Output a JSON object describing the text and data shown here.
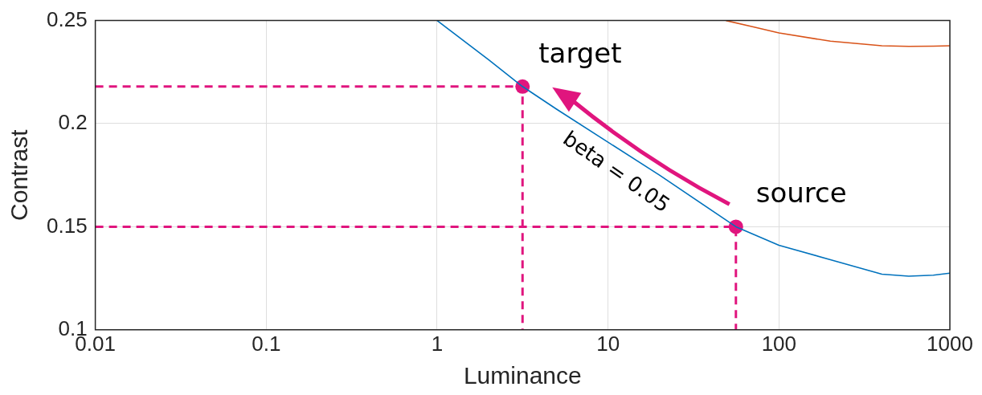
{
  "chart_data": {
    "type": "line",
    "xlabel": "Luminance",
    "ylabel": "Contrast",
    "log": "x",
    "grid": true,
    "legend": false,
    "xlim": [
      0.01,
      1000
    ],
    "xticks": [
      0.01,
      0.1,
      1,
      10,
      100,
      1000
    ],
    "ylim": [
      0.1,
      0.25
    ],
    "yticks": [
      0.1,
      0.15,
      0.2,
      0.25
    ],
    "series": [
      {
        "type": "line",
        "color": "#0072bd",
        "marker": "none",
        "line_style": "solid",
        "x": [
          1,
          2,
          3.16,
          5,
          10,
          20,
          56,
          100,
          200,
          400,
          575,
          800,
          1000
        ],
        "values": [
          0.25,
          0.231,
          0.218,
          0.207,
          0.191,
          0.175,
          0.15,
          0.141,
          0.134,
          0.127,
          0.126,
          0.1265,
          0.1275
        ]
      },
      {
        "type": "line",
        "color": "#d95319",
        "marker": "none",
        "line_style": "solid",
        "x": [
          49,
          70,
          100,
          200,
          400,
          575,
          800,
          1000
        ],
        "values": [
          0.25,
          0.247,
          0.244,
          0.24,
          0.2378,
          0.2375,
          0.2376,
          0.2378
        ]
      },
      {
        "type": "line",
        "color": "#e0157e",
        "marker": "none",
        "line_style": "dashed",
        "x": [
          0.01,
          3.16,
          3.16
        ],
        "values": [
          0.218,
          0.218,
          0.1
        ]
      },
      {
        "type": "line",
        "color": "#e0157e",
        "marker": "none",
        "line_style": "dashed",
        "x": [
          0.01,
          56,
          56
        ],
        "values": [
          0.15,
          0.15,
          0.1
        ]
      },
      {
        "type": "scatter",
        "color": "#e0157e",
        "marker": "circle",
        "x": [
          3.16,
          56
        ],
        "values": [
          0.218,
          0.15
        ]
      }
    ],
    "annotations": [
      {
        "text": "target",
        "x": 3.16,
        "y": 0.218
      },
      {
        "text": "source",
        "x": 56,
        "y": 0.15
      },
      {
        "text": "beta = 0.05",
        "x": 20,
        "y": 0.175
      }
    ]
  }
}
